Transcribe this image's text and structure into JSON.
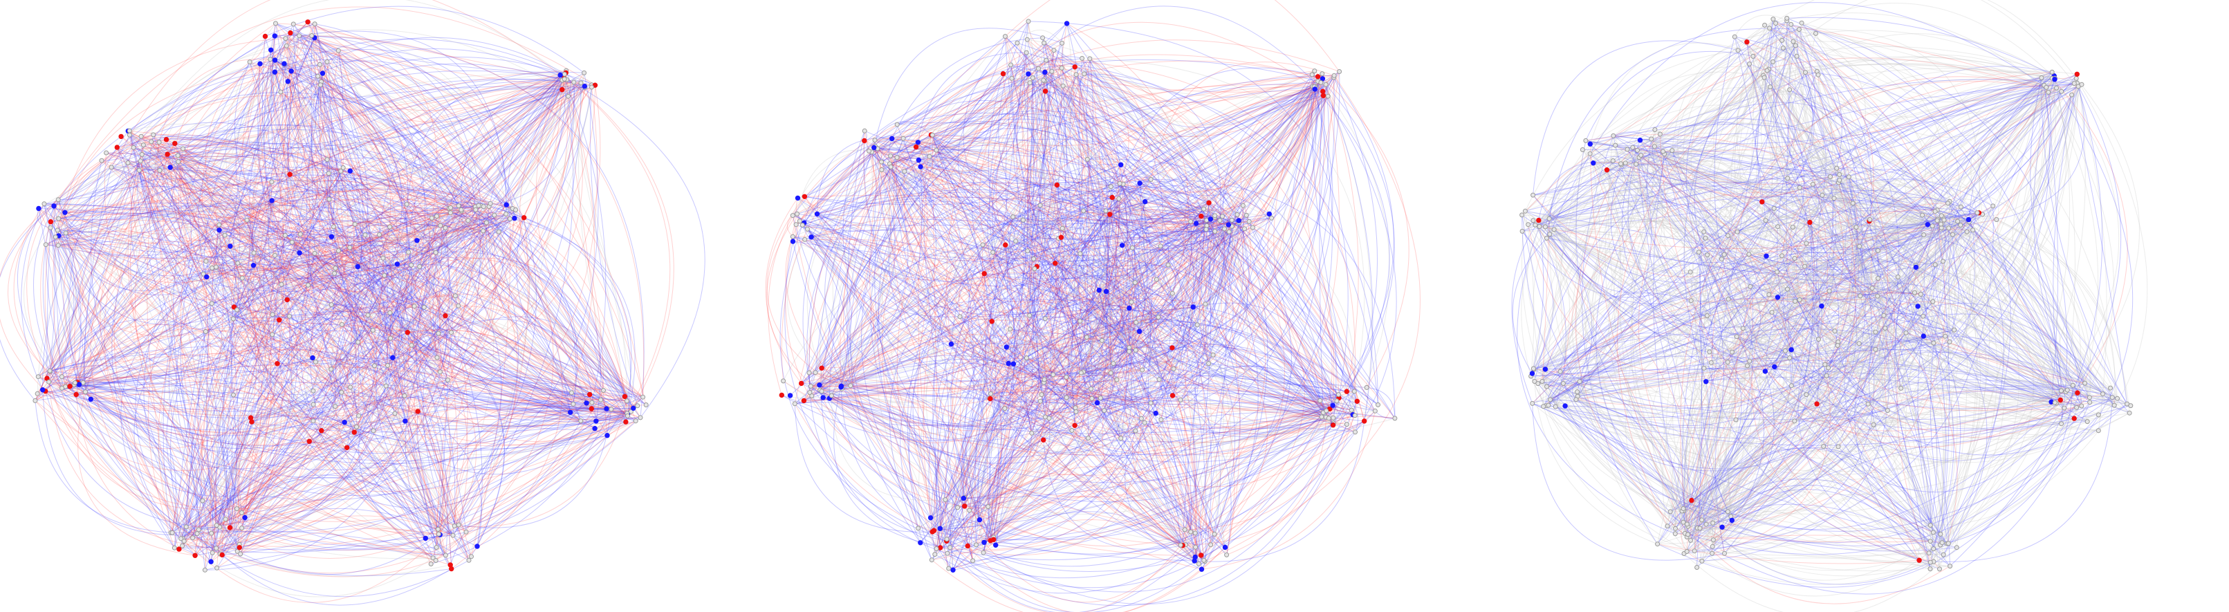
{
  "figure": {
    "panels": [
      {
        "id": "panel-1",
        "emphasis": {
          "blue": 0.45,
          "red": 0.4
        }
      },
      {
        "id": "panel-2",
        "emphasis": {
          "blue": 0.5,
          "red": 0.32
        }
      },
      {
        "id": "panel-3",
        "emphasis": {
          "blue": 0.3,
          "red": 0.08
        }
      }
    ],
    "colors": {
      "blue_edge": "#3b3bff",
      "red_edge": "#ff3333",
      "gray_edge": "#c8c8c8",
      "blue_node": "#1a1aff",
      "red_node": "#ee1111",
      "gray_node": "#e6e6e6",
      "background": "#ffffff"
    }
  }
}
